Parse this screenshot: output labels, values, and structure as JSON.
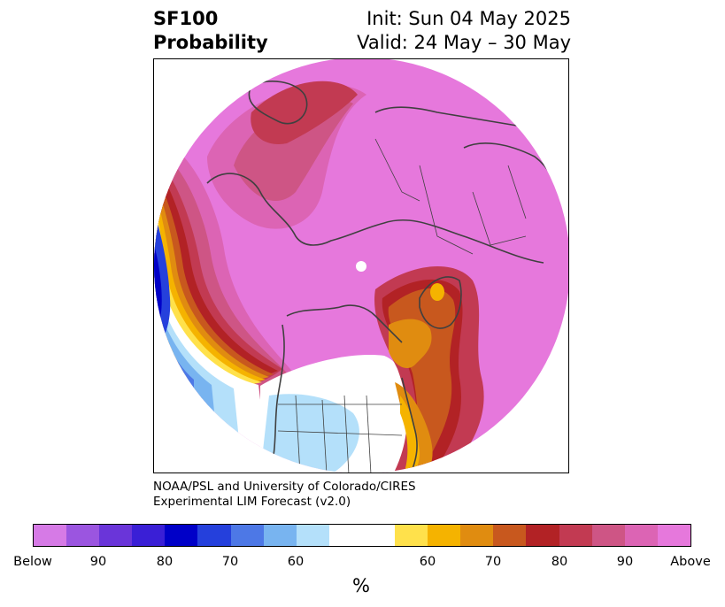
{
  "title": {
    "left_lines": [
      "SF100",
      "Probability"
    ],
    "right_lines": [
      "Init: Sun 04 May 2025",
      "Valid: 24 May – 30 May"
    ]
  },
  "credit_lines": [
    "NOAA/PSL and University of Colorado/CIRES",
    "Experimental LIM Forecast (v2.0)"
  ],
  "colorbar": {
    "colors": [
      "#d67ae6",
      "#9b55e0",
      "#6a35d9",
      "#3a1fd6",
      "#0000c8",
      "#2540dc",
      "#4d78e6",
      "#78b4f0",
      "#b4e0fa",
      "#ffffff",
      "#ffffff",
      "#ffe14b",
      "#f5b300",
      "#e08c10",
      "#c8581e",
      "#b22225",
      "#c23a52",
      "#ce5585",
      "#dc64b4",
      "#e678dc"
    ],
    "tick_labels": [
      "Below",
      "90",
      "80",
      "70",
      "60",
      "60",
      "70",
      "80",
      "90",
      "Above"
    ],
    "unit": "%"
  },
  "legend_categories": [
    "below-normal-shading",
    "near-normal-white",
    "above-normal-shading"
  ]
}
